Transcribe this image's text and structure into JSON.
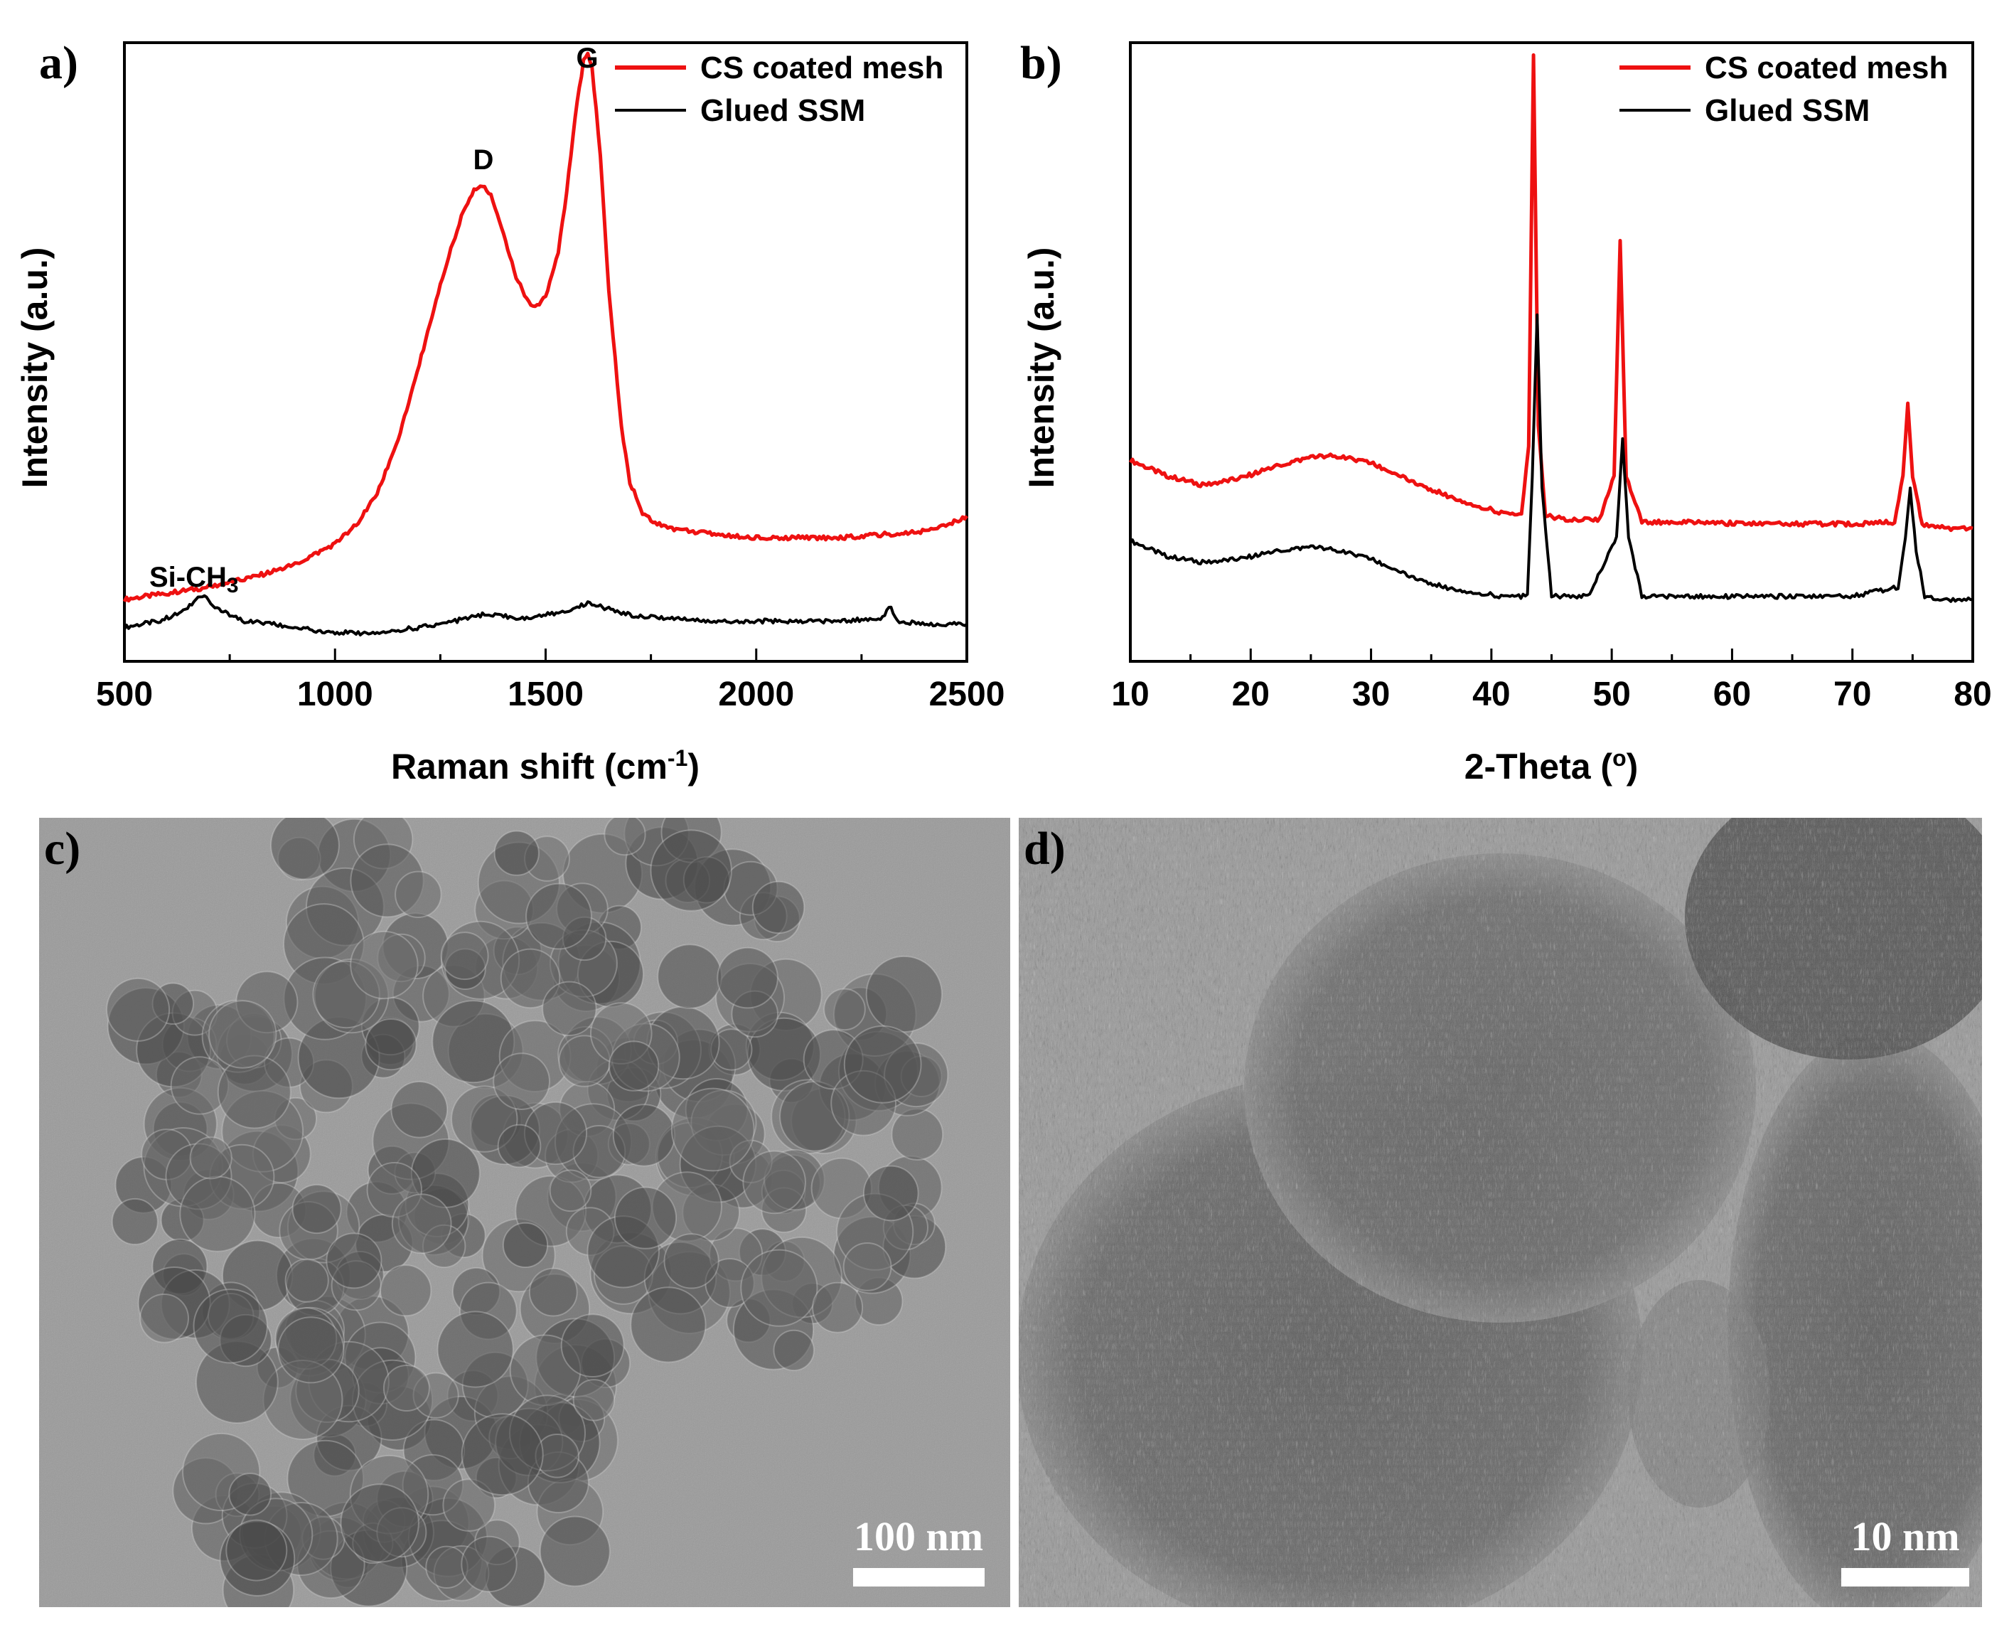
{
  "panels": {
    "a": "a)",
    "b": "b)",
    "c": "c)",
    "d": "d)"
  },
  "colors": {
    "cs": "#ee1111",
    "glued": "#000000"
  },
  "chart_data": [
    {
      "panel": "a",
      "type": "line",
      "xlabel": "Raman shift (cm",
      "xlabel_sup": "-1",
      "xlabel_end": ")",
      "ylabel": "Intensity (a.u.)",
      "xlim": [
        500,
        2500
      ],
      "xticks": [
        "500",
        "1000",
        "1500",
        "2000",
        "2500"
      ],
      "ylim": [
        0,
        100
      ],
      "grid": false,
      "legend_position": "top-right",
      "annotations": {
        "d": "D",
        "g": "G",
        "si": "Si-CH",
        "si_sub": "3"
      },
      "series": [
        {
          "name": "CS coated mesh",
          "color": "#ee1111",
          "x": [
            500,
            600,
            700,
            800,
            900,
            1000,
            1050,
            1100,
            1150,
            1200,
            1250,
            1300,
            1330,
            1350,
            1370,
            1400,
            1430,
            1460,
            1480,
            1500,
            1530,
            1550,
            1570,
            1590,
            1600,
            1610,
            1630,
            1650,
            1680,
            1700,
            1730,
            1760,
            1800,
            1900,
            2000,
            2100,
            2200,
            2300,
            2400,
            2450,
            2500
          ],
          "y": [
            10,
            11,
            12,
            13.5,
            15.5,
            19,
            22,
            27,
            36,
            48,
            61,
            72,
            76,
            77,
            75.5,
            69,
            62,
            58,
            57.5,
            59,
            66,
            76,
            88,
            97,
            98.5,
            96,
            82,
            60,
            38,
            29,
            24,
            22.5,
            21.5,
            20.5,
            20,
            20,
            20,
            20.5,
            21,
            22,
            23.5
          ]
        },
        {
          "name": "Glued SSM",
          "color": "#000000",
          "x": [
            500,
            580,
            640,
            670,
            690,
            720,
            780,
            850,
            950,
            1050,
            1150,
            1250,
            1350,
            1450,
            1550,
            1600,
            1620,
            1700,
            1800,
            1900,
            2000,
            2100,
            2200,
            2300,
            2320,
            2330,
            2340,
            2400,
            2500
          ],
          "y": [
            5.5,
            6.5,
            8,
            10,
            10.5,
            8.5,
            6.5,
            6,
            5,
            4.5,
            5,
            6,
            7.5,
            7,
            8,
            9.5,
            9,
            7.5,
            7,
            6.5,
            6.5,
            6.5,
            6.5,
            7,
            9,
            7,
            6.5,
            6,
            6
          ]
        }
      ]
    },
    {
      "panel": "b",
      "type": "line",
      "xlabel": "2-Theta (",
      "xlabel_sup": "o",
      "xlabel_end": ")",
      "ylabel": "Intensity (a.u.)",
      "xlim": [
        10,
        80
      ],
      "xticks": [
        "10",
        "20",
        "30",
        "40",
        "50",
        "60",
        "70",
        "80"
      ],
      "ylim": [
        0,
        100
      ],
      "grid": false,
      "legend_position": "top-right",
      "series": [
        {
          "name": "CS coated mesh",
          "color": "#ee1111",
          "x": [
            10,
            13,
            16,
            19,
            22,
            25,
            27,
            30,
            33,
            36,
            39,
            41,
            42.5,
            43.1,
            43.5,
            43.9,
            44.5,
            46,
            49,
            50.2,
            50.7,
            51.2,
            52.5,
            56,
            60,
            65,
            70,
            73.5,
            74.2,
            74.6,
            75.0,
            75.8,
            78,
            80
          ],
          "y": [
            32.5,
            30,
            28.5,
            29.5,
            31.5,
            33,
            33.2,
            32,
            29.5,
            27,
            25,
            24,
            23.5,
            35,
            98,
            38,
            23.5,
            23,
            23,
            30,
            68,
            30,
            22.5,
            22.5,
            22.3,
            22.2,
            22.2,
            22.5,
            30,
            42,
            30,
            22.2,
            21.5,
            21.5
          ]
        },
        {
          "name": "Glued SSM",
          "color": "#000000",
          "x": [
            10,
            13,
            16,
            19,
            22,
            25,
            27,
            30,
            33,
            36,
            39,
            41,
            43,
            43.4,
            43.8,
            44.2,
            45,
            48,
            50.4,
            50.9,
            51.4,
            52.5,
            56,
            60,
            65,
            70,
            73.8,
            74.4,
            74.8,
            75.3,
            76,
            78,
            80
          ],
          "y": [
            19.5,
            17,
            16,
            16.5,
            17.8,
            18.5,
            18,
            16.5,
            14,
            12,
            11,
            10.5,
            10.5,
            30,
            56,
            28,
            10.5,
            10.5,
            20,
            36,
            20,
            10.5,
            10.5,
            10.5,
            10.5,
            10.5,
            12,
            20,
            28,
            18,
            10.5,
            10,
            10
          ]
        }
      ]
    }
  ],
  "images": {
    "c": {
      "scale_label": "100 nm"
    },
    "d": {
      "scale_label": "10 nm"
    }
  }
}
